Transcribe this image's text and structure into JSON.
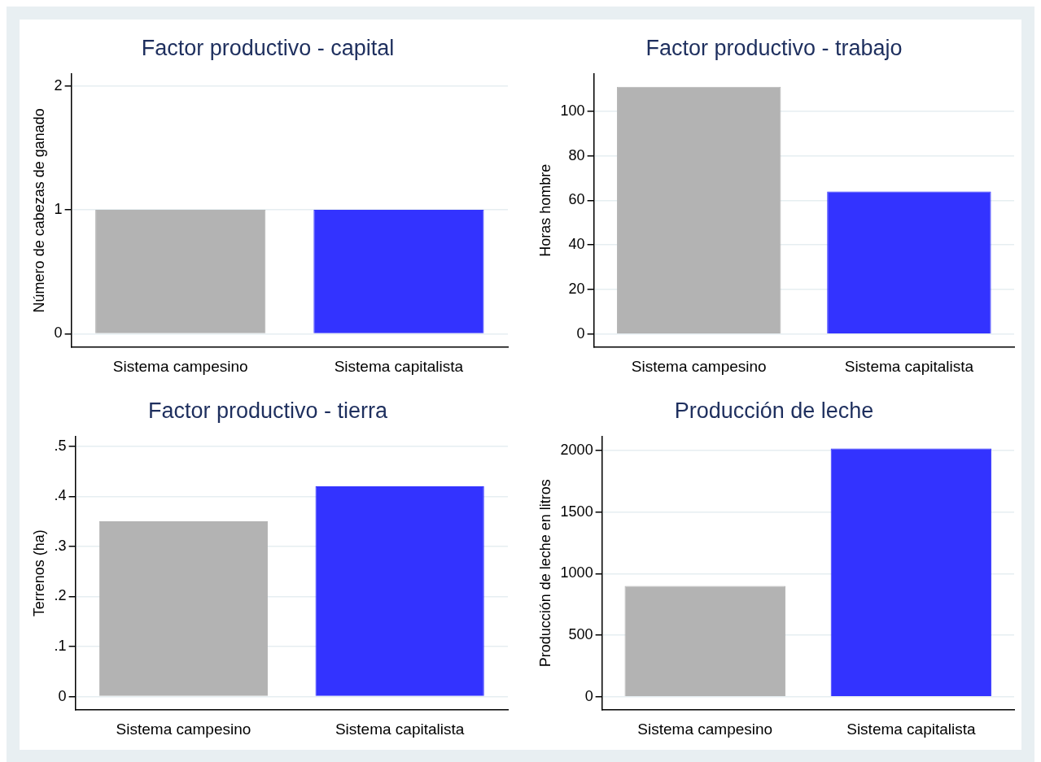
{
  "chart_data": [
    {
      "type": "bar",
      "title": "Factor productivo - capital",
      "ylabel": "Número de cabezas de ganado",
      "categories": [
        "Sistema campesino",
        "Sistema capitalista"
      ],
      "values": [
        1,
        1
      ],
      "colors": [
        "#b3b3b3",
        "#3333ff"
      ],
      "ylim": [
        -0.11,
        2.1
      ],
      "yticks": [
        0,
        1,
        2
      ],
      "grid": "y"
    },
    {
      "type": "bar",
      "title": "Factor productivo - trabajo",
      "ylabel": "Horas hombre",
      "categories": [
        "Sistema campesino",
        "Sistema capitalista"
      ],
      "values": [
        111,
        64
      ],
      "colors": [
        "#b3b3b3",
        "#3333ff"
      ],
      "ylim": [
        -6,
        117
      ],
      "yticks": [
        0,
        20,
        40,
        60,
        80,
        100
      ],
      "grid": "y"
    },
    {
      "type": "bar",
      "title": "Factor productivo - tierra",
      "ylabel": "Terrenos (ha)",
      "categories": [
        "Sistema campesino",
        "Sistema capitalista"
      ],
      "values": [
        0.35,
        0.42
      ],
      "colors": [
        "#b3b3b3",
        "#3333ff"
      ],
      "ylim": [
        -0.027,
        0.52
      ],
      "yticks": [
        0,
        {
          "value": 0.1,
          "label": ".1"
        },
        {
          "value": 0.2,
          "label": ".2"
        },
        {
          "value": 0.3,
          "label": ".3"
        },
        {
          "value": 0.4,
          "label": ".4"
        },
        {
          "value": 0.5,
          "label": ".5"
        }
      ],
      "grid": "y"
    },
    {
      "type": "bar",
      "title": "Producción de leche",
      "ylabel": "Producción de leche en litros",
      "categories": [
        "Sistema campesino",
        "Sistema capitalista"
      ],
      "values": [
        900,
        2015
      ],
      "colors": [
        "#b3b3b3",
        "#3333ff"
      ],
      "ylim": [
        -109,
        2115
      ],
      "yticks": [
        0,
        500,
        1000,
        1500,
        2000
      ],
      "grid": "y"
    }
  ]
}
